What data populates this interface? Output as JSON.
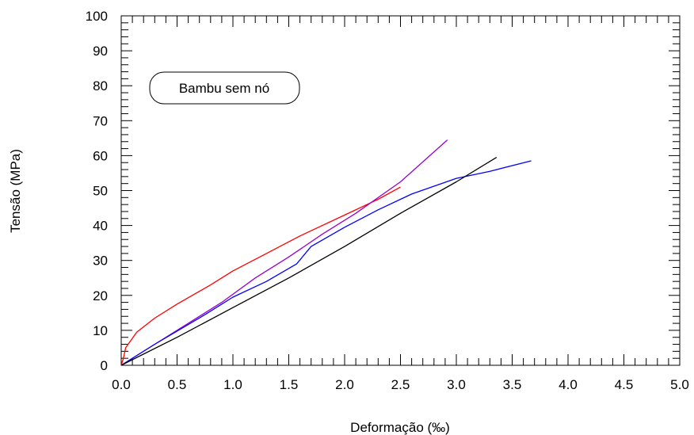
{
  "chart_data": {
    "type": "line",
    "title": "",
    "xlabel": "Deformação (‰)",
    "ylabel": "Tensão (MPa)",
    "xlim": [
      0,
      5
    ],
    "ylim": [
      0,
      100
    ],
    "x_ticks": [
      "0.0",
      "0.5",
      "1.0",
      "1.5",
      "2.0",
      "2.5",
      "3.0",
      "3.5",
      "4.0",
      "4.5",
      "5.0"
    ],
    "y_ticks": [
      "0",
      "10",
      "20",
      "30",
      "40",
      "50",
      "60",
      "70",
      "80",
      "90",
      "100"
    ],
    "grid": false,
    "annotation": "Bambu sem nó",
    "series": [
      {
        "color": "#ff0000",
        "points": [
          [
            0,
            0
          ],
          [
            0.02,
            2
          ],
          [
            0.04,
            5
          ],
          [
            0.14,
            9.5
          ],
          [
            0.3,
            13.5
          ],
          [
            0.5,
            17.5
          ],
          [
            0.8,
            23
          ],
          [
            1.0,
            27
          ],
          [
            1.3,
            32
          ],
          [
            1.6,
            37
          ],
          [
            2.0,
            43
          ],
          [
            2.3,
            47.5
          ],
          [
            2.5,
            51
          ]
        ]
      },
      {
        "color": "#9900cc",
        "points": [
          [
            0,
            0
          ],
          [
            0.3,
            6
          ],
          [
            0.6,
            12
          ],
          [
            0.9,
            18
          ],
          [
            1.2,
            25
          ],
          [
            1.5,
            31
          ],
          [
            1.8,
            37.5
          ],
          [
            2.1,
            43.5
          ],
          [
            2.5,
            52.5
          ],
          [
            2.92,
            64.5
          ]
        ]
      },
      {
        "color": "#0000ff",
        "points": [
          [
            0,
            0
          ],
          [
            0.3,
            6
          ],
          [
            0.75,
            14.5
          ],
          [
            1.0,
            19.5
          ],
          [
            1.3,
            24
          ],
          [
            1.57,
            29
          ],
          [
            1.7,
            34
          ],
          [
            2.0,
            39.5
          ],
          [
            2.3,
            44.5
          ],
          [
            2.6,
            49
          ],
          [
            3.0,
            53.5
          ],
          [
            3.3,
            55.5
          ],
          [
            3.67,
            58.5
          ]
        ]
      },
      {
        "color": "#000000",
        "points": [
          [
            0,
            0
          ],
          [
            0.5,
            8
          ],
          [
            1.0,
            16.5
          ],
          [
            1.5,
            25
          ],
          [
            2.0,
            34
          ],
          [
            2.5,
            43.5
          ],
          [
            3.0,
            52.5
          ],
          [
            3.36,
            59.5
          ]
        ]
      }
    ]
  }
}
